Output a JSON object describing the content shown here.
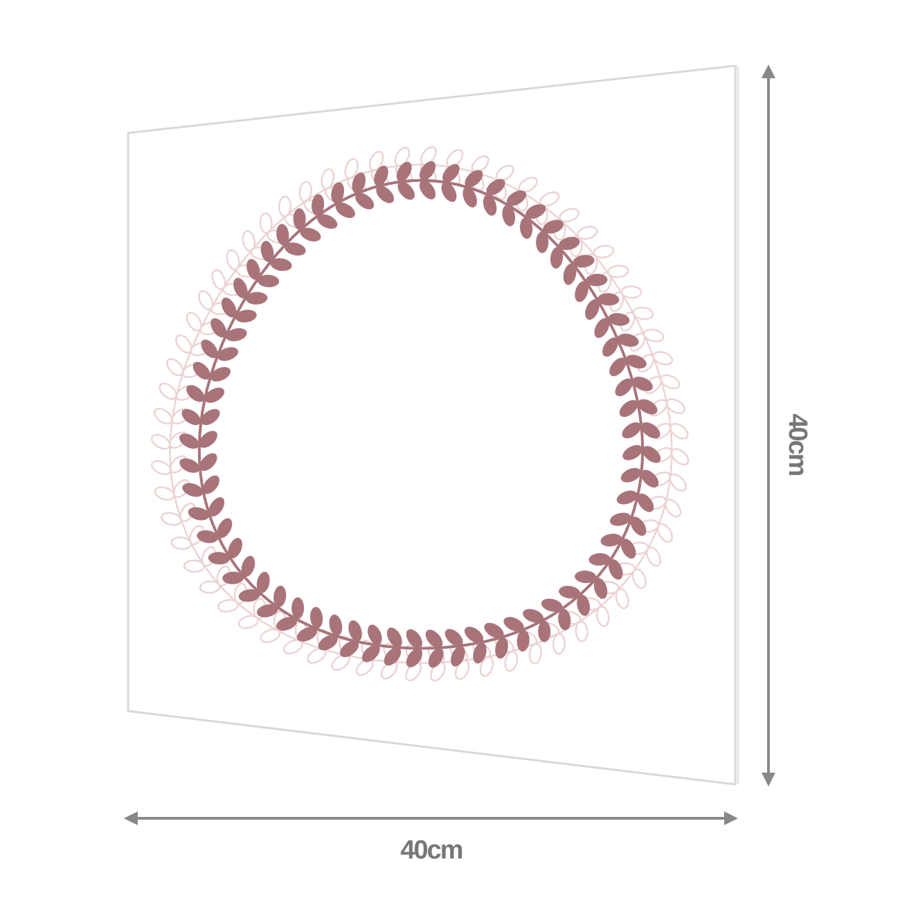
{
  "dimensions": {
    "width_label": "40cm",
    "height_label": "40cm"
  }
}
